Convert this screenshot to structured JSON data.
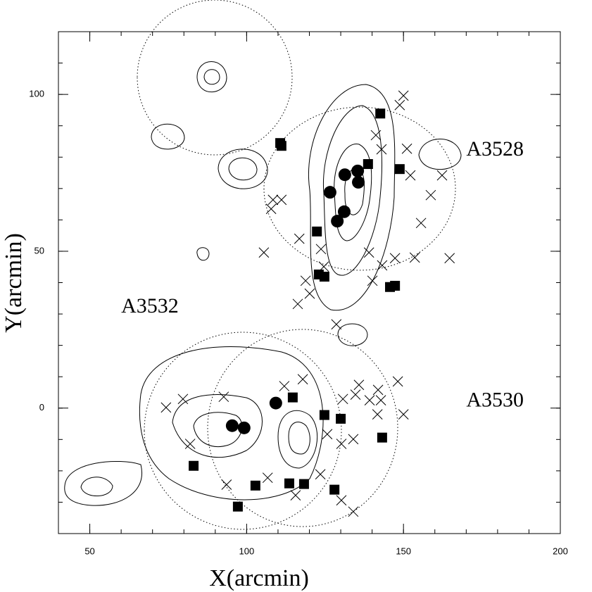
{
  "chart_data": {
    "type": "scatter",
    "xlabel": "X(arcmin)",
    "ylabel": "Y(arcmin)",
    "xlim": [
      40,
      200
    ],
    "ylim": [
      -40,
      120
    ],
    "xticks": [
      50,
      100,
      150,
      200
    ],
    "yticks": [
      0,
      50,
      100
    ],
    "xminorticks": [
      40,
      50,
      60,
      70,
      80,
      90,
      100,
      110,
      120,
      130,
      140,
      150,
      160,
      170,
      180,
      190,
      200
    ],
    "yminorticks": [
      -40,
      -30,
      -20,
      -10,
      0,
      10,
      20,
      30,
      40,
      50,
      60,
      70,
      80,
      90,
      100,
      110,
      120
    ],
    "annotations": [
      {
        "text": "A3528",
        "x": 170,
        "y": 82
      },
      {
        "text": "A3532",
        "x": 60,
        "y": 32
      },
      {
        "text": "A3530",
        "x": 170,
        "y": 2
      }
    ],
    "series": [
      {
        "marker": "circle",
        "color": "#000000",
        "x": [
          126.6,
          131.3,
          135.4,
          135.6,
          131.1,
          128.9,
          109.3,
          95.4,
          99.2
        ],
        "values": [
          68.8,
          74.4,
          75.6,
          72.0,
          62.6,
          59.6,
          1.6,
          -5.6,
          -6.3
        ]
      },
      {
        "marker": "square",
        "color": "#000000",
        "x": [
          142.6,
          110.7,
          111.1,
          138.7,
          148.8,
          122.4,
          123.0,
          124.8,
          145.7,
          147.3,
          114.7,
          124.8,
          130.0,
          143.2,
          83.1,
          102.8,
          113.6,
          118.3,
          128.0,
          97.2
        ],
        "values": [
          93.9,
          84.5,
          83.6,
          77.8,
          76.2,
          56.3,
          42.6,
          41.9,
          38.6,
          39.0,
          3.4,
          -2.2,
          -3.4,
          -9.4,
          -18.4,
          -24.7,
          -24.0,
          -24.2,
          -26.0,
          -31.4
        ]
      },
      {
        "marker": "cross",
        "color": "#000000",
        "x": [
          150.0,
          148.8,
          141.2,
          143.0,
          151.1,
          152.2,
          158.7,
          155.6,
          162.3,
          164.7,
          108.4,
          111.1,
          107.8,
          105.5,
          116.8,
          123.7,
          118.8,
          120.1,
          116.3,
          124.6,
          139.0,
          143.2,
          140.1,
          147.3,
          153.6,
          128.6,
          148.2,
          135.8,
          130.7,
          134.7,
          141.9,
          142.8,
          141.7,
          139.2,
          150.0,
          74.3,
          79.7,
          112.0,
          117.9,
          92.7,
          82.0,
          93.6,
          106.7,
          115.6,
          130.2,
          125.7,
          134.0,
          130.2,
          134.0,
          123.5
        ],
        "values": [
          99.6,
          96.6,
          87.0,
          82.5,
          82.7,
          74.2,
          67.9,
          59.0,
          74.2,
          47.8,
          66.4,
          66.4,
          63.5,
          49.6,
          54.0,
          50.7,
          40.6,
          36.5,
          33.2,
          45.1,
          49.6,
          45.5,
          40.6,
          47.8,
          48.0,
          26.7,
          8.5,
          7.4,
          2.9,
          4.3,
          5.8,
          2.5,
          -2.0,
          2.5,
          -2.0,
          0.2,
          2.9,
          7.0,
          9.2,
          3.6,
          -11.4,
          -24.4,
          -22.2,
          -27.8,
          -11.4,
          -8.3,
          -9.9,
          -29.4,
          -33.0,
          -21.1
        ]
      }
    ]
  }
}
